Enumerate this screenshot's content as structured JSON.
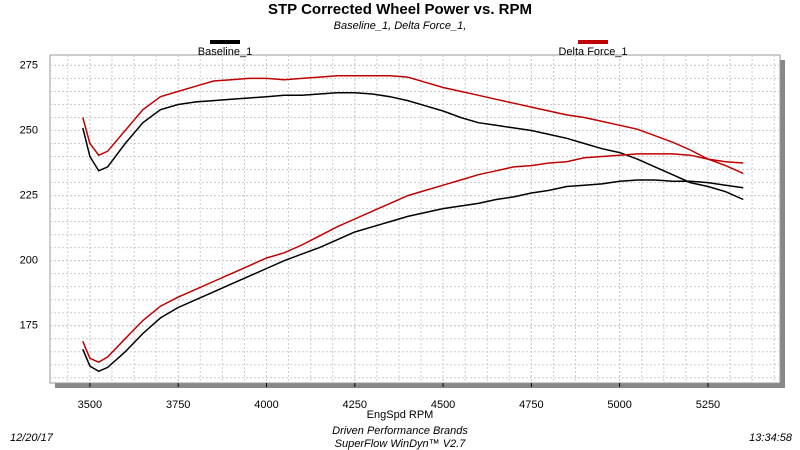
{
  "chart_data": {
    "type": "line",
    "title": "STP Corrected Wheel Power vs. RPM",
    "subtitle": "Baseline_1, Delta Force_1,",
    "x_label": "EngSpd  RPM",
    "footer": {
      "date": "12/20/17",
      "company": "Driven Performance Brands",
      "software": "SuperFlow WinDyn™ V2.7",
      "time": "13:34:58"
    },
    "xlim": [
      3387,
      5454
    ],
    "ylim": [
      153,
      279
    ],
    "xticks": [
      3500,
      3750,
      4000,
      4250,
      4500,
      4750,
      5000,
      5250
    ],
    "yticks": [
      175,
      200,
      225,
      250,
      275
    ],
    "grid": true,
    "x": [
      3480,
      3500,
      3525,
      3550,
      3600,
      3650,
      3700,
      3750,
      3800,
      3850,
      3900,
      3950,
      4000,
      4050,
      4100,
      4150,
      4200,
      4250,
      4300,
      4350,
      4400,
      4450,
      4500,
      4550,
      4600,
      4650,
      4700,
      4750,
      4800,
      4850,
      4900,
      4950,
      5000,
      5050,
      5100,
      5150,
      5200,
      5250,
      5300,
      5350
    ],
    "series": [
      {
        "name": "Baseline_1",
        "color": "#000000",
        "curves": [
          [
            251,
            240,
            234.5,
            236,
            245,
            253,
            258,
            260,
            261,
            261.5,
            262,
            262.5,
            263,
            263.5,
            263.5,
            264,
            264.5,
            264.5,
            264,
            263,
            261.5,
            259.5,
            257.5,
            255,
            253,
            252,
            251,
            250,
            248.5,
            247,
            245,
            243,
            241.5,
            239,
            236,
            233,
            230,
            228.5,
            226.5,
            223.5
          ],
          [
            166,
            159.5,
            157.5,
            159,
            165,
            172,
            178,
            182,
            185,
            188,
            191,
            194,
            197,
            200,
            202.5,
            205,
            208,
            211,
            213,
            215,
            217,
            218.5,
            220,
            221,
            222,
            223.5,
            224.5,
            226,
            227,
            228.5,
            229,
            229.5,
            230.5,
            231,
            231,
            230.5,
            230.5,
            230,
            229,
            228
          ]
        ]
      },
      {
        "name": "Delta Force_1",
        "color": "#c00000",
        "curves": [
          [
            255,
            245,
            240.5,
            242,
            250,
            258,
            263,
            265,
            267,
            269,
            269.5,
            270,
            270,
            269.5,
            270,
            270.5,
            271,
            271,
            271,
            271,
            270.5,
            268.5,
            266.5,
            265,
            263.5,
            262,
            260.5,
            259,
            257.5,
            256,
            255,
            253.5,
            252,
            250.5,
            248,
            245.5,
            242.5,
            239,
            236.5,
            233.5
          ],
          [
            169,
            162.5,
            161,
            163,
            170,
            177,
            182.5,
            186,
            189,
            192,
            195,
            198,
            201,
            203,
            206,
            209.5,
            213,
            216,
            219,
            222,
            225,
            227,
            229,
            231,
            233,
            234.5,
            236,
            236.5,
            237.5,
            238,
            239.5,
            240,
            240.5,
            241,
            241,
            241,
            240.5,
            239,
            238,
            237.5
          ]
        ]
      }
    ]
  }
}
